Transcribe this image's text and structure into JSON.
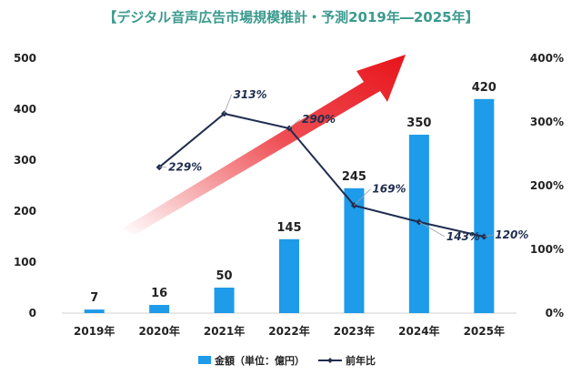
{
  "chart_data": {
    "type": "bar",
    "title": "【デジタル音声広告市場規模推計・予測2019年―2025年】",
    "categories": [
      "2019年",
      "2020年",
      "2021年",
      "2022年",
      "2023年",
      "2024年",
      "2025年"
    ],
    "series": [
      {
        "name": "金額（単位：億円）",
        "type": "bar",
        "axis": "left",
        "color": "#1e9be9",
        "values": [
          7,
          16,
          50,
          145,
          245,
          350,
          420
        ],
        "labels": [
          "7",
          "16",
          "50",
          "145",
          "245",
          "350",
          "420"
        ]
      },
      {
        "name": "前年比",
        "type": "line",
        "axis": "right",
        "color": "#1f2d4e",
        "values": [
          null,
          229,
          313,
          290,
          169,
          143,
          120
        ],
        "labels": [
          null,
          "229%",
          "313%",
          "290%",
          "169%",
          "143%",
          "120%"
        ]
      }
    ],
    "y_left": {
      "lim": [
        0,
        500
      ],
      "ticks": [
        "0",
        "100",
        "200",
        "300",
        "400",
        "500"
      ]
    },
    "y_right": {
      "lim": [
        0,
        400
      ],
      "ticks": [
        "0%",
        "100%",
        "200%",
        "300%",
        "400%"
      ]
    },
    "legend_position": "bottom-center",
    "grid": false,
    "arrow_color": "#e8141b"
  }
}
